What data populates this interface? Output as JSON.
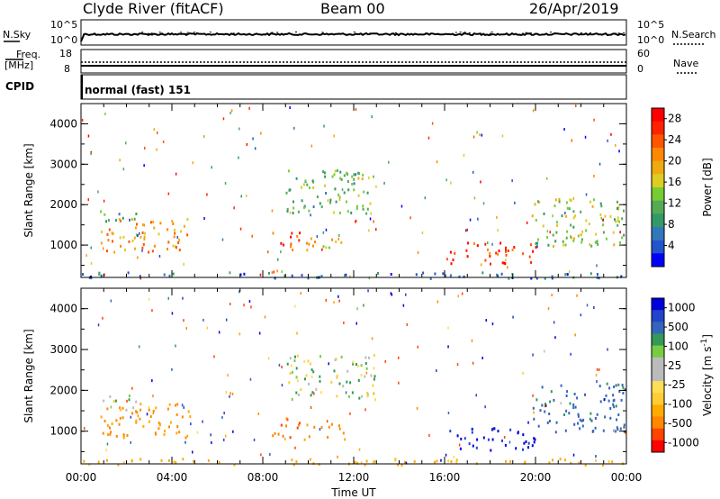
{
  "header": {
    "station": "Clyde River (fitACF)",
    "beam": "Beam 00",
    "date": "26/Apr/2019"
  },
  "side_labels": {
    "nsky": "N.Sky",
    "nsearch": "N.Search",
    "freq_line1": "Freq.",
    "freq_line2": "[MHz]",
    "nave": "Nave",
    "cpid": "CPID"
  },
  "noise_panel": {
    "left_ticks": [
      "10^5",
      "10^0"
    ],
    "right_ticks": [
      "10^5",
      "10^0"
    ]
  },
  "freq_panel": {
    "left_ticks": [
      "18",
      "8"
    ],
    "right_ticks": [
      "60",
      "0"
    ]
  },
  "cpid_panel": {
    "text": "normal (fast) 151"
  },
  "colors": {
    "power_scale": [
      "#0000ff",
      "#2255cc",
      "#3377bb",
      "#339966",
      "#55aa55",
      "#77cc33",
      "#ddcc22",
      "#eeaa11",
      "#ff8800",
      "#ff5500",
      "#ff2200",
      "#ff0000"
    ],
    "velocity_scale": [
      "#ff0000",
      "#ff4400",
      "#ff8800",
      "#ffaa00",
      "#ffcc33",
      "#ffdd55",
      "#bbbbbb",
      "#bbbbbb",
      "#77cc44",
      "#339955",
      "#3366bb",
      "#2244cc",
      "#0000dd"
    ]
  },
  "chart_data": [
    {
      "type": "heatmap",
      "name": "power",
      "ylabel": "Slant Range [km]",
      "yticks": [
        1000,
        2000,
        3000,
        4000
      ],
      "ylim": [
        200,
        4500
      ],
      "xlim": [
        0,
        24
      ],
      "xticks": [
        "00:00",
        "04:00",
        "08:00",
        "12:00",
        "16:00",
        "20:00",
        "00:00"
      ],
      "colorbar": {
        "label": "Power [dB]",
        "tick_labels": [
          "4",
          "8",
          "12",
          "16",
          "20",
          "24",
          "28"
        ],
        "range": [
          0,
          30
        ]
      },
      "features": [
        {
          "t0": 0.8,
          "t1": 4.8,
          "r0": 850,
          "r1": 1700,
          "level": 20
        },
        {
          "t0": 0.8,
          "t1": 2.5,
          "r0": 1550,
          "r1": 1900,
          "level": 10
        },
        {
          "t0": 8.4,
          "t1": 9.6,
          "r0": 800,
          "r1": 1350,
          "level": 24
        },
        {
          "t0": 9.8,
          "t1": 11.6,
          "r0": 800,
          "r1": 1200,
          "level": 18
        },
        {
          "t0": 9.0,
          "t1": 13.0,
          "r0": 1800,
          "r1": 2900,
          "level": 12
        },
        {
          "t0": 11.2,
          "t1": 12.5,
          "r0": 2600,
          "r1": 2900,
          "level": 16
        },
        {
          "t0": 16.2,
          "t1": 20.0,
          "r0": 550,
          "r1": 1100,
          "level": 26
        },
        {
          "t0": 19.8,
          "t1": 24.0,
          "r0": 1000,
          "r1": 2200,
          "level": 14
        },
        {
          "t0": 0.0,
          "t1": 24.0,
          "r0": 200,
          "r1": 350,
          "level": 6
        }
      ]
    },
    {
      "type": "heatmap",
      "name": "velocity",
      "ylabel": "Slant Range [km]",
      "yticks": [
        1000,
        2000,
        3000,
        4000
      ],
      "ylim": [
        200,
        4500
      ],
      "xlim": [
        0,
        24
      ],
      "xlabel": "Time UT",
      "xticks": [
        "00:00",
        "04:00",
        "08:00",
        "12:00",
        "16:00",
        "20:00",
        "00:00"
      ],
      "colorbar": {
        "label": "Velocity [m s^-1]",
        "tick_labels": [
          "1000",
          "500",
          "100",
          "25",
          "-25",
          "-100",
          "-500",
          "-1000"
        ]
      },
      "features": [
        {
          "t0": 0.8,
          "t1": 4.8,
          "r0": 850,
          "r1": 1700,
          "level": -300
        },
        {
          "t0": 0.8,
          "t1": 2.5,
          "r0": 1550,
          "r1": 1900,
          "level": 0
        },
        {
          "t0": 8.4,
          "t1": 9.6,
          "r0": 800,
          "r1": 1350,
          "level": -400
        },
        {
          "t0": 9.8,
          "t1": 11.6,
          "r0": 800,
          "r1": 1200,
          "level": -300
        },
        {
          "t0": 9.0,
          "t1": 13.0,
          "r0": 1800,
          "r1": 2900,
          "level": 0
        },
        {
          "t0": 16.2,
          "t1": 20.0,
          "r0": 550,
          "r1": 1100,
          "level": 600
        },
        {
          "t0": 19.8,
          "t1": 24.0,
          "r0": 1000,
          "r1": 2200,
          "level": 150
        },
        {
          "t0": 0.0,
          "t1": 24.0,
          "r0": 200,
          "r1": 350,
          "level": -150
        }
      ]
    }
  ]
}
